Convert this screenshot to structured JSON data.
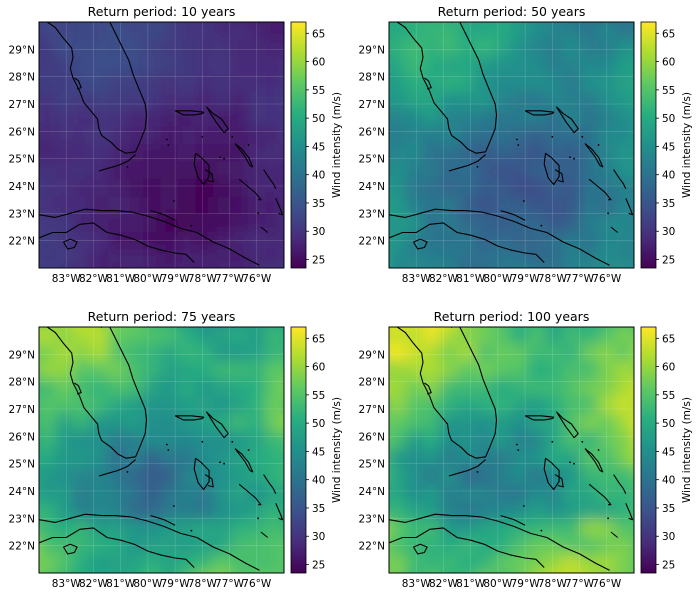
{
  "colormap": "viridis",
  "colorbar": {
    "label": "Wind intensity (m/s)",
    "ticks": [
      25,
      30,
      35,
      40,
      45,
      50,
      55,
      60,
      65
    ],
    "range": [
      23.5,
      67
    ]
  },
  "axes": {
    "x_ticks": [
      "83°W",
      "82°W",
      "81°W",
      "80°W",
      "79°W",
      "78°W",
      "77°W",
      "76°W"
    ],
    "y_ticks": [
      "29°N",
      "28°N",
      "27°N",
      "26°N",
      "25°N",
      "24°N",
      "23°N",
      "22°N"
    ],
    "lon_range": [
      -84,
      -75
    ],
    "lat_range": [
      21,
      30
    ]
  },
  "panels": [
    {
      "title": "Return period: 10 years",
      "base": 29,
      "amp": 4
    },
    {
      "title": "Return period: 50 years",
      "base": 43,
      "amp": 8
    },
    {
      "title": "Return period: 75 years",
      "base": 49,
      "amp": 10
    },
    {
      "title": "Return period: 100 years",
      "base": 52,
      "amp": 11
    }
  ],
  "chart_data": [
    {
      "type": "heatmap",
      "title": "Return period: 10 years",
      "colorbar_label": "Wind intensity (m/s)",
      "value_range_estimate": [
        24,
        36
      ]
    },
    {
      "type": "heatmap",
      "title": "Return period: 50 years",
      "colorbar_label": "Wind intensity (m/s)",
      "value_range_estimate": [
        32,
        55
      ]
    },
    {
      "type": "heatmap",
      "title": "Return period: 75 years",
      "colorbar_label": "Wind intensity (m/s)",
      "value_range_estimate": [
        36,
        62
      ]
    },
    {
      "type": "heatmap",
      "title": "Return period: 100 years",
      "colorbar_label": "Wind intensity (m/s)",
      "value_range_estimate": [
        38,
        66
      ]
    }
  ]
}
